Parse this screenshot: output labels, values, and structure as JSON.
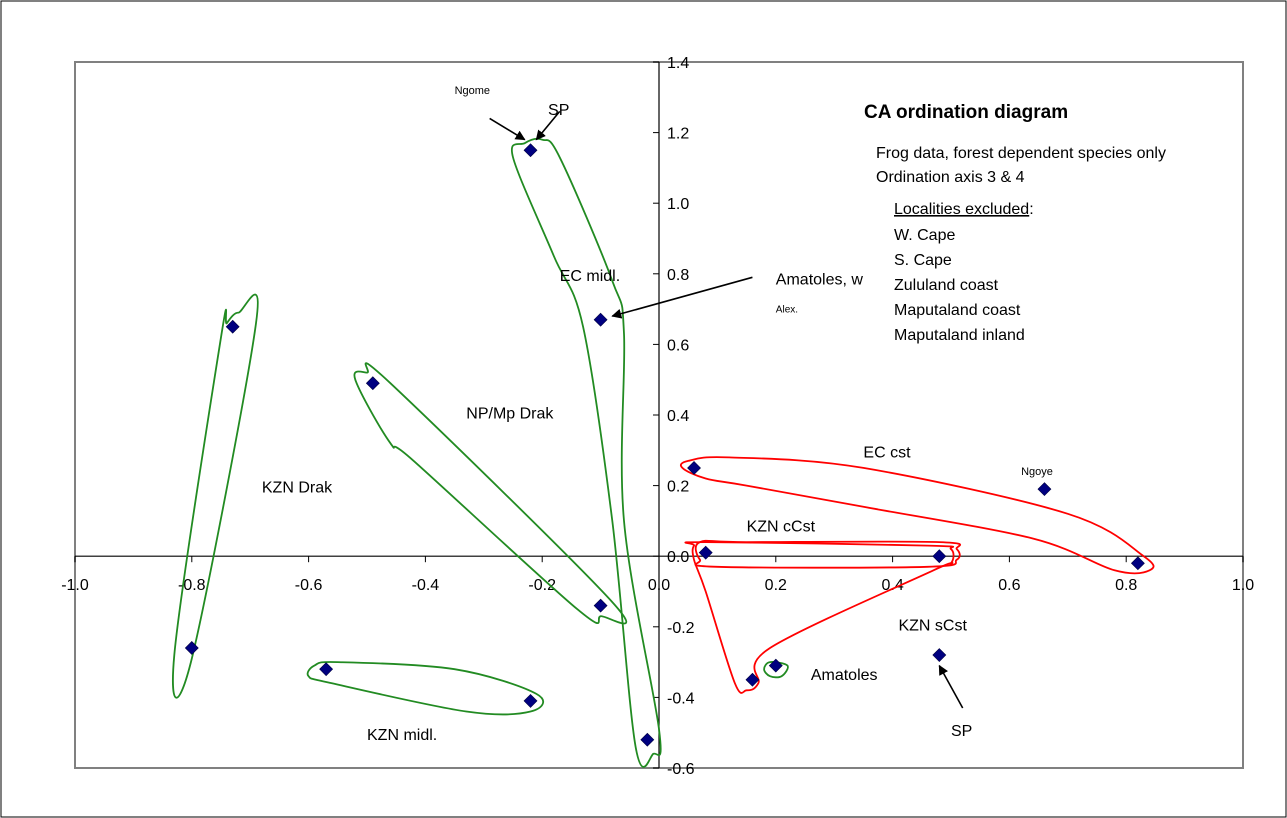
{
  "chart_data": {
    "type": "scatter",
    "title": "CA ordination diagram",
    "subtitle_lines": [
      "Frog data, forest dependent species only",
      "Ordination axis 3 & 4"
    ],
    "excluded_heading": "Localities excluded",
    "excluded_colon": ":",
    "excluded_list": [
      "W. Cape",
      "S. Cape",
      "Zululand coast",
      "Maputaland coast",
      "Maputaland inland"
    ],
    "xlim": [
      -1.0,
      1.0
    ],
    "ylim": [
      -0.6,
      1.4
    ],
    "x_ticks": [
      -1.0,
      -0.8,
      -0.6,
      -0.4,
      -0.2,
      0.0,
      0.2,
      0.4,
      0.6,
      0.8,
      1.0
    ],
    "y_ticks": [
      -0.6,
      -0.4,
      -0.2,
      0.0,
      0.2,
      0.4,
      0.6,
      0.8,
      1.0,
      1.2,
      1.4
    ],
    "x_tick_labels": [
      "-1.0",
      "-0.8",
      "-0.6",
      "-0.4",
      "-0.2",
      "0.0",
      "0.2",
      "0.4",
      "0.6",
      "0.8",
      "1.0"
    ],
    "y_tick_labels": [
      "-0.6",
      "-0.4",
      "-0.2",
      "0.0",
      "0.2",
      "0.4",
      "0.6",
      "0.8",
      "1.0",
      "1.2",
      "1.4"
    ],
    "marker_color": "#000080",
    "points": [
      {
        "x": -0.22,
        "y": 1.15
      },
      {
        "x": -0.1,
        "y": 0.67
      },
      {
        "x": -0.73,
        "y": 0.65
      },
      {
        "x": -0.49,
        "y": 0.49
      },
      {
        "x": -0.1,
        "y": -0.14
      },
      {
        "x": -0.8,
        "y": -0.26
      },
      {
        "x": -0.57,
        "y": -0.32
      },
      {
        "x": -0.22,
        "y": -0.41
      },
      {
        "x": -0.02,
        "y": -0.52
      },
      {
        "x": 0.06,
        "y": 0.25
      },
      {
        "x": 0.08,
        "y": 0.01
      },
      {
        "x": 0.48,
        "y": 0.0
      },
      {
        "x": 0.82,
        "y": -0.02
      },
      {
        "x": 0.66,
        "y": 0.19
      },
      {
        "x": 0.16,
        "y": -0.35
      },
      {
        "x": 0.2,
        "y": -0.31
      },
      {
        "x": 0.48,
        "y": -0.28
      }
    ],
    "groups": [
      {
        "label": "KZN Drak",
        "color": "#228B22",
        "label_x": -0.68,
        "label_y": 0.18,
        "outline": [
          [
            -0.72,
            0.69
          ],
          [
            -0.69,
            0.66
          ],
          [
            -0.8,
            -0.29
          ],
          [
            -0.83,
            -0.28
          ],
          [
            -0.75,
            0.62
          ],
          [
            -0.74,
            0.66
          ]
        ]
      },
      {
        "label": "NP/Mp Drak",
        "color": "#228B22",
        "label_x": -0.33,
        "label_y": 0.39,
        "outline": [
          [
            -0.52,
            0.5
          ],
          [
            -0.5,
            0.52
          ],
          [
            -0.46,
            0.49
          ],
          [
            -0.08,
            -0.13
          ],
          [
            -0.1,
            -0.17
          ],
          [
            -0.14,
            -0.15
          ],
          [
            -0.42,
            0.27
          ],
          [
            -0.46,
            0.32
          ]
        ]
      },
      {
        "label": "KZN midl.",
        "color": "#228B22",
        "label_x": -0.5,
        "label_y": -0.52,
        "outline": [
          [
            -0.59,
            -0.31
          ],
          [
            -0.55,
            -0.3
          ],
          [
            -0.35,
            -0.32
          ],
          [
            -0.21,
            -0.39
          ],
          [
            -0.22,
            -0.44
          ],
          [
            -0.33,
            -0.44
          ],
          [
            -0.56,
            -0.36
          ],
          [
            -0.6,
            -0.34
          ]
        ]
      },
      {
        "label": "EC midl.",
        "color": "#228B22",
        "label_x": -0.17,
        "label_y": 0.78,
        "outline": [
          [
            -0.23,
            1.17
          ],
          [
            -0.2,
            1.18
          ],
          [
            -0.17,
            1.13
          ],
          [
            -0.08,
            0.78
          ],
          [
            -0.06,
            0.63
          ],
          [
            -0.06,
            0.1
          ],
          [
            0.0,
            -0.49
          ],
          [
            -0.01,
            -0.56
          ],
          [
            -0.04,
            -0.54
          ],
          [
            -0.08,
            0.1
          ],
          [
            -0.13,
            0.65
          ],
          [
            -0.18,
            0.85
          ],
          [
            -0.25,
            1.13
          ]
        ]
      },
      {
        "label": "Amatoles",
        "color": "#228B22",
        "label_x": 0.26,
        "label_y": -0.35,
        "outline": [
          [
            0.19,
            -0.3
          ],
          [
            0.22,
            -0.31
          ],
          [
            0.21,
            -0.34
          ],
          [
            0.19,
            -0.34
          ],
          [
            0.18,
            -0.32
          ]
        ]
      },
      {
        "label": "EC cst",
        "color": "#FF0000",
        "label_x": 0.35,
        "label_y": 0.28,
        "outline": [
          [
            0.05,
            0.27
          ],
          [
            0.12,
            0.28
          ],
          [
            0.35,
            0.25
          ],
          [
            0.7,
            0.12
          ],
          [
            0.83,
            0.0
          ],
          [
            0.84,
            -0.04
          ],
          [
            0.78,
            -0.04
          ],
          [
            0.64,
            0.05
          ],
          [
            0.35,
            0.14
          ],
          [
            0.15,
            0.2
          ],
          [
            0.08,
            0.22
          ],
          [
            0.04,
            0.25
          ]
        ]
      },
      {
        "label": "KZN cCst",
        "color": "#FF0000",
        "label_x": 0.15,
        "label_y": 0.07,
        "outline": [
          [
            0.07,
            0.04
          ],
          [
            0.15,
            0.04
          ],
          [
            0.48,
            0.04
          ],
          [
            0.51,
            0.02
          ],
          [
            0.51,
            -0.01
          ],
          [
            0.46,
            -0.03
          ],
          [
            0.1,
            -0.03
          ],
          [
            0.07,
            -0.01
          ]
        ]
      },
      {
        "label": "KZN sCst",
        "color": "#FF0000",
        "label_x": 0.41,
        "label_y": -0.21,
        "outline": [
          [
            0.06,
            0.03
          ],
          [
            0.08,
            0.04
          ],
          [
            0.46,
            0.03
          ],
          [
            0.5,
            0.02
          ],
          [
            0.5,
            -0.02
          ],
          [
            0.47,
            -0.04
          ],
          [
            0.19,
            -0.26
          ],
          [
            0.17,
            -0.36
          ],
          [
            0.15,
            -0.38
          ],
          [
            0.13,
            -0.36
          ],
          [
            0.08,
            -0.1
          ],
          [
            0.06,
            -0.01
          ]
        ]
      }
    ],
    "annotations": [
      {
        "text": "Ngome",
        "x": -0.35,
        "y": 1.31,
        "size": 11,
        "arrow_from": [
          -0.29,
          1.24
        ],
        "arrow_to": [
          -0.23,
          1.18
        ]
      },
      {
        "text": "SP",
        "x": -0.19,
        "y": 1.25,
        "size": 16,
        "arrow_from": [
          -0.17,
          1.26
        ],
        "arrow_to": [
          -0.21,
          1.18
        ]
      },
      {
        "text": "Amatoles, w",
        "x": 0.2,
        "y": 0.77,
        "size": 16,
        "arrow_from": [
          0.16,
          0.79
        ],
        "arrow_to": [
          -0.08,
          0.68
        ]
      },
      {
        "text": "Alex.",
        "x": 0.2,
        "y": 0.69,
        "size": 10
      },
      {
        "text": "Ngoye",
        "x": 0.62,
        "y": 0.23,
        "size": 11
      },
      {
        "text": "SP",
        "x": 0.5,
        "y": -0.51,
        "size": 16,
        "arrow_from": [
          0.52,
          -0.43
        ],
        "arrow_to": [
          0.48,
          -0.31
        ]
      }
    ]
  }
}
